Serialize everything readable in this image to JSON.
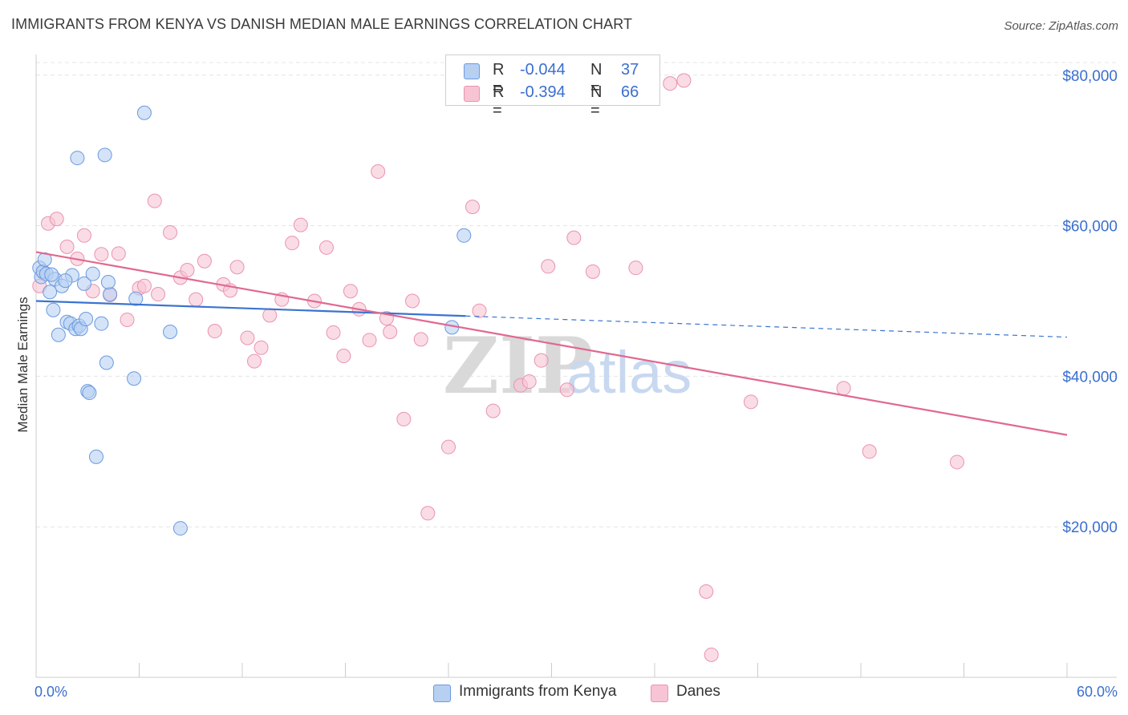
{
  "title": "IMMIGRANTS FROM KENYA VS DANISH MEDIAN MALE EARNINGS CORRELATION CHART",
  "source": "Source: ZipAtlas.com",
  "watermark": {
    "zip": "ZIP",
    "atlas": "atlas"
  },
  "legend": {
    "rows": [
      {
        "r_label": "R =",
        "r_value": "-0.044",
        "n_label": "N =",
        "n_value": "37"
      },
      {
        "r_label": "R =",
        "r_value": "-0.394",
        "n_label": "N =",
        "n_value": "66"
      }
    ]
  },
  "colors": {
    "series1_fill": "#b7d0f2",
    "series1_stroke": "#6a9ae0",
    "series1_line": "#3a74d0",
    "series2_fill": "#f7c4d4",
    "series2_stroke": "#ea93b0",
    "series2_line": "#e0698f",
    "grid": "#e4e4e4",
    "tick_label": "#3b6fcf"
  },
  "chart_data": {
    "type": "scatter",
    "title": "IMMIGRANTS FROM KENYA VS DANISH MEDIAN MALE EARNINGS CORRELATION CHART",
    "xlabel": "",
    "ylabel": "Median Male Earnings",
    "xlim": [
      0,
      60
    ],
    "ylim": [
      0,
      82000
    ],
    "x_tick_labels": [
      "0.0%",
      "60.0%"
    ],
    "y_ticks": [
      20000,
      40000,
      60000,
      80000
    ],
    "y_tick_labels": [
      "$20,000",
      "$40,000",
      "$60,000",
      "$80,000"
    ],
    "grid": true,
    "series": [
      {
        "name": "Immigrants from Kenya",
        "color": "#6a9ae0",
        "points": [
          [
            0.2,
            54400
          ],
          [
            0.3,
            53200
          ],
          [
            0.4,
            53900
          ],
          [
            0.5,
            55500
          ],
          [
            0.6,
            53600
          ],
          [
            0.8,
            51200
          ],
          [
            1.0,
            48800
          ],
          [
            1.1,
            52900
          ],
          [
            1.3,
            45500
          ],
          [
            1.5,
            52000
          ],
          [
            1.8,
            47200
          ],
          [
            2.0,
            47000
          ],
          [
            2.1,
            53400
          ],
          [
            2.3,
            46300
          ],
          [
            2.4,
            69000
          ],
          [
            2.5,
            46700
          ],
          [
            2.6,
            46300
          ],
          [
            2.8,
            52300
          ],
          [
            2.9,
            47600
          ],
          [
            3.0,
            38000
          ],
          [
            3.1,
            37800
          ],
          [
            3.3,
            53600
          ],
          [
            3.5,
            29300
          ],
          [
            3.8,
            47000
          ],
          [
            4.0,
            69400
          ],
          [
            4.1,
            41800
          ],
          [
            4.3,
            50900
          ],
          [
            5.7,
            39700
          ],
          [
            5.8,
            50300
          ],
          [
            6.3,
            75000
          ],
          [
            7.8,
            45900
          ],
          [
            8.4,
            19800
          ],
          [
            24.2,
            46500
          ],
          [
            24.9,
            58700
          ],
          [
            4.2,
            52500
          ],
          [
            1.7,
            52700
          ],
          [
            0.9,
            53500
          ]
        ],
        "trend": {
          "x0": 0,
          "y0": 50000,
          "x1": 25,
          "y1": 48000,
          "x_dashed_end": 60,
          "y_dashed_end": 45200
        }
      },
      {
        "name": "Danes",
        "color": "#ea93b0",
        "points": [
          [
            0.2,
            52000
          ],
          [
            0.4,
            53800
          ],
          [
            0.7,
            60300
          ],
          [
            1.2,
            60900
          ],
          [
            1.8,
            57200
          ],
          [
            2.4,
            55600
          ],
          [
            2.8,
            58700
          ],
          [
            3.3,
            51300
          ],
          [
            3.8,
            56200
          ],
          [
            4.3,
            50800
          ],
          [
            4.8,
            56300
          ],
          [
            5.3,
            47500
          ],
          [
            6.0,
            51700
          ],
          [
            6.3,
            52000
          ],
          [
            6.9,
            63300
          ],
          [
            7.1,
            50900
          ],
          [
            7.8,
            59100
          ],
          [
            8.4,
            53100
          ],
          [
            8.8,
            54100
          ],
          [
            9.3,
            50200
          ],
          [
            9.8,
            55300
          ],
          [
            10.4,
            46000
          ],
          [
            10.9,
            52200
          ],
          [
            11.3,
            51400
          ],
          [
            11.7,
            54500
          ],
          [
            12.3,
            45100
          ],
          [
            12.7,
            42000
          ],
          [
            13.1,
            43800
          ],
          [
            13.6,
            48100
          ],
          [
            14.3,
            50200
          ],
          [
            14.9,
            57700
          ],
          [
            15.4,
            60100
          ],
          [
            16.2,
            50000
          ],
          [
            16.9,
            57100
          ],
          [
            17.3,
            45800
          ],
          [
            17.9,
            42700
          ],
          [
            18.3,
            51300
          ],
          [
            18.8,
            48900
          ],
          [
            19.4,
            44800
          ],
          [
            19.9,
            67200
          ],
          [
            20.4,
            47700
          ],
          [
            20.6,
            45900
          ],
          [
            21.4,
            34300
          ],
          [
            21.9,
            50000
          ],
          [
            22.4,
            44900
          ],
          [
            22.8,
            21800
          ],
          [
            24.0,
            30600
          ],
          [
            25.4,
            62500
          ],
          [
            25.8,
            48700
          ],
          [
            26.6,
            35400
          ],
          [
            28.2,
            38800
          ],
          [
            28.7,
            39300
          ],
          [
            29.4,
            42100
          ],
          [
            29.8,
            54600
          ],
          [
            30.9,
            38200
          ],
          [
            31.3,
            58400
          ],
          [
            32.4,
            53900
          ],
          [
            34.9,
            54400
          ],
          [
            36.9,
            78900
          ],
          [
            37.7,
            79300
          ],
          [
            39.0,
            11400
          ],
          [
            39.3,
            3000
          ],
          [
            41.6,
            36600
          ],
          [
            47.0,
            38400
          ],
          [
            48.5,
            30000
          ],
          [
            53.6,
            28600
          ]
        ],
        "trend": {
          "x0": 0,
          "y0": 56500,
          "x1": 60,
          "y1": 32200
        }
      }
    ]
  },
  "bottom_legend": [
    {
      "label": "Immigrants from Kenya"
    },
    {
      "label": "Danes"
    }
  ]
}
